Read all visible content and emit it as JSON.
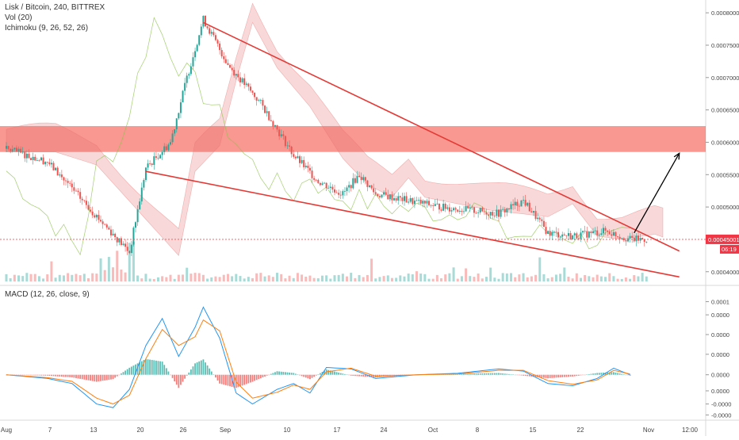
{
  "header": {
    "symbol_line": "Lisk / Bitcoin, 240, BITTREX",
    "vol_line": "Vol (20)",
    "ichimoku_line": "Ichimoku (9, 26, 52, 26)",
    "macd_line": "MACD (12, 26, close, 9)"
  },
  "price_badge": {
    "value": "0.00045001",
    "countdown": "06:19",
    "color": "#f23645"
  },
  "colors": {
    "candle_up": "#26a69a",
    "candle_down": "#ef5350",
    "trendline": "#e53935",
    "zone": "#f44336",
    "macd_line": "#2196f3",
    "signal_line": "#ff7f0e",
    "arrow": "#000000",
    "cloud_bull": "#81c784",
    "cloud_bear": "#e57373"
  },
  "chart_data": [
    {
      "type": "candlestick",
      "title": "Lisk / Bitcoin, 240, BITTREX",
      "y_ticks": [
        "0.00080000",
        "0.00075000",
        "0.00070000",
        "0.00065000",
        "0.00060000",
        "0.00055000",
        "0.00050000",
        "0.00040000"
      ],
      "ylim": [
        0.000385,
        0.00081
      ],
      "x_ticks": [
        "Aug",
        "7",
        "13",
        "20",
        "26",
        "Sep",
        "10",
        "17",
        "24",
        "Oct",
        "8",
        "15",
        "22",
        "Nov",
        "12:00"
      ],
      "price_path": [
        [
          0,
          0.00059
        ],
        [
          5,
          0.00057
        ],
        [
          10,
          0.0005
        ],
        [
          15,
          0.00043
        ],
        [
          17,
          0.00056
        ],
        [
          20,
          0.0006
        ],
        [
          22,
          0.0007
        ],
        [
          24,
          0.00079
        ],
        [
          27,
          0.00072
        ],
        [
          31,
          0.00066
        ],
        [
          35,
          0.00058
        ],
        [
          38,
          0.00054
        ],
        [
          41,
          0.00052
        ],
        [
          43,
          0.00055
        ],
        [
          45,
          0.00052
        ],
        [
          49,
          0.00051
        ],
        [
          53,
          0.0005
        ],
        [
          60,
          0.00049
        ],
        [
          63,
          0.00051
        ],
        [
          66,
          0.00046
        ],
        [
          69,
          0.000455
        ],
        [
          73,
          0.000463
        ],
        [
          76,
          0.00045
        ],
        [
          78,
          0.00045
        ]
      ],
      "trendlines": [
        {
          "name": "upper",
          "from": [
            24,
            0.000785
          ],
          "to": [
            82,
            0.000432
          ]
        },
        {
          "name": "lower",
          "from": [
            17,
            0.000555
          ],
          "to": [
            82,
            0.000392
          ]
        }
      ],
      "resistance_zone": {
        "from": 0.000585,
        "to": 0.000625
      },
      "projection_arrow": {
        "from": [
          76.5,
          0.00046
        ],
        "to": [
          82,
          0.000583
        ]
      },
      "last_price_line": 0.00045001
    },
    {
      "type": "line",
      "title": "MACD (12, 26, close, 9)",
      "y_ticks": [
        "0.0001",
        "0.0000",
        "0.0000",
        "0.0000",
        "0.0000",
        "0.0000",
        "-0.0000",
        "-0.0000"
      ],
      "ylim": [
        -6e-05,
        0.000106
      ],
      "series": [
        {
          "name": "MACD",
          "values": [
            [
              0,
              0.0
            ],
            [
              5,
              -5e-06
            ],
            [
              8,
              -1.2e-05
            ],
            [
              11,
              -4e-05
            ],
            [
              13,
              -4.5e-05
            ],
            [
              15,
              -2e-05
            ],
            [
              17,
              4e-05
            ],
            [
              19,
              7.7e-05
            ],
            [
              21,
              2.5e-05
            ],
            [
              23,
              6.5e-05
            ],
            [
              24,
              9.25e-05
            ],
            [
              26,
              5e-05
            ],
            [
              28,
              -2.5e-05
            ],
            [
              30,
              -4e-05
            ],
            [
              33,
              -2e-05
            ],
            [
              35,
              -1.2e-05
            ],
            [
              37,
              -2.5e-05
            ],
            [
              39,
              1e-05
            ],
            [
              42,
              8e-06
            ],
            [
              45,
              -5e-06
            ],
            [
              50,
              0.0
            ],
            [
              55,
              2e-06
            ],
            [
              60,
              8e-06
            ],
            [
              63,
              5e-06
            ],
            [
              66,
              -1.2e-05
            ],
            [
              69,
              -1.5e-05
            ],
            [
              72,
              -5e-06
            ],
            [
              74,
              9e-06
            ],
            [
              76,
              0.0
            ]
          ]
        },
        {
          "name": "Signal",
          "values": [
            [
              0,
              0.0
            ],
            [
              5,
              -4e-06
            ],
            [
              8,
              -9e-06
            ],
            [
              11,
              -3.2e-05
            ],
            [
              13,
              -4e-05
            ],
            [
              15,
              -2.8e-05
            ],
            [
              17,
              2.2e-05
            ],
            [
              19,
              6.2e-05
            ],
            [
              21,
              4e-05
            ],
            [
              23,
              5.2e-05
            ],
            [
              24,
              7.5e-05
            ],
            [
              26,
              6e-05
            ],
            [
              28,
              -1e-05
            ],
            [
              30,
              -3.2e-05
            ],
            [
              33,
              -2.4e-05
            ],
            [
              35,
              -1.4e-05
            ],
            [
              37,
              -2e-05
            ],
            [
              39,
              4e-06
            ],
            [
              42,
              9e-06
            ],
            [
              45,
              -2e-06
            ],
            [
              50,
              0.0
            ],
            [
              55,
              1e-06
            ],
            [
              60,
              6e-06
            ],
            [
              63,
              6e-06
            ],
            [
              66,
              -8e-06
            ],
            [
              69,
              -1.3e-05
            ],
            [
              72,
              -7e-06
            ],
            [
              74,
              6e-06
            ],
            [
              76,
              1e-06
            ]
          ]
        }
      ]
    }
  ]
}
